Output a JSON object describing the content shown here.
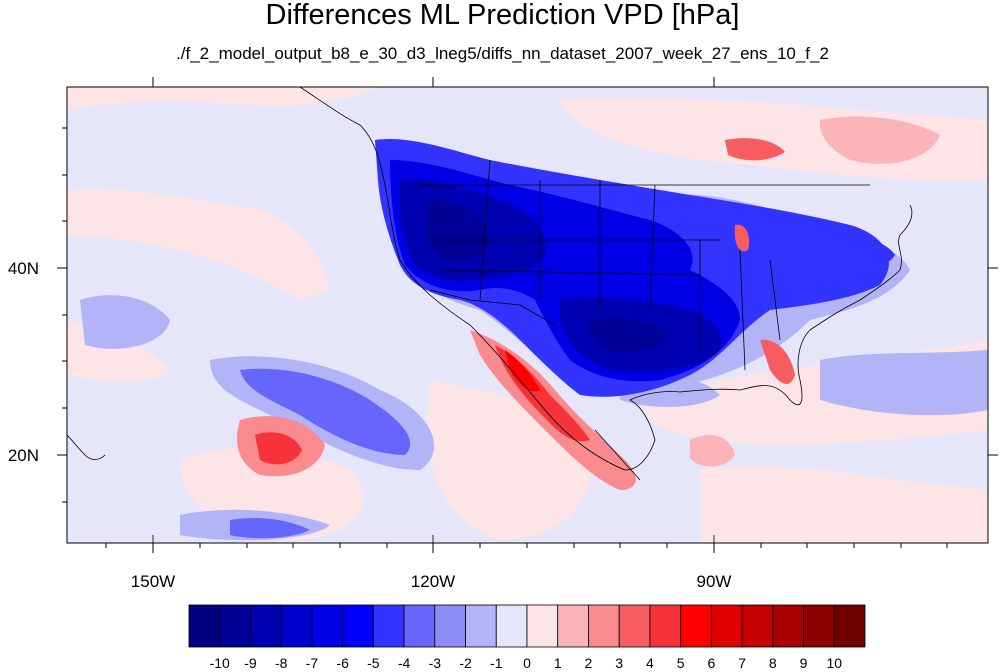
{
  "title": "Differences ML Prediction VPD [hPa]",
  "subtitle": "./f_2_model_output_b8_e_30_d3_lneg5/diffs_nn_dataset_2007_week_27_ens_10_f_2",
  "map": {
    "projection": "cylindrical equidistant",
    "lon_range": [
      -159,
      -61
    ],
    "lat_range": [
      11,
      60
    ],
    "x_ticks": [
      "150W",
      "120W",
      "90W"
    ],
    "y_ticks": [
      "40N",
      "20N"
    ],
    "background_color": "#e6e6fa"
  },
  "colorbar": {
    "labels": [
      "-10",
      "-9",
      "-8",
      "-7",
      "-6",
      "-5",
      "-4",
      "-3",
      "-2",
      "-1",
      "0",
      "1",
      "2",
      "3",
      "4",
      "5",
      "6",
      "7",
      "8",
      "9",
      "10"
    ],
    "colors": [
      "#000080",
      "#000099",
      "#0000b3",
      "#0000cc",
      "#0000e6",
      "#0000ff",
      "#3333ff",
      "#6666ff",
      "#8c8cf5",
      "#b3b3f8",
      "#e6e6fa",
      "#fde4e6",
      "#fbb5b8",
      "#f98a8e",
      "#f75c61",
      "#f53338",
      "#ff0000",
      "#e00000",
      "#c40000",
      "#a80000",
      "#8c0000",
      "#700000"
    ]
  }
}
